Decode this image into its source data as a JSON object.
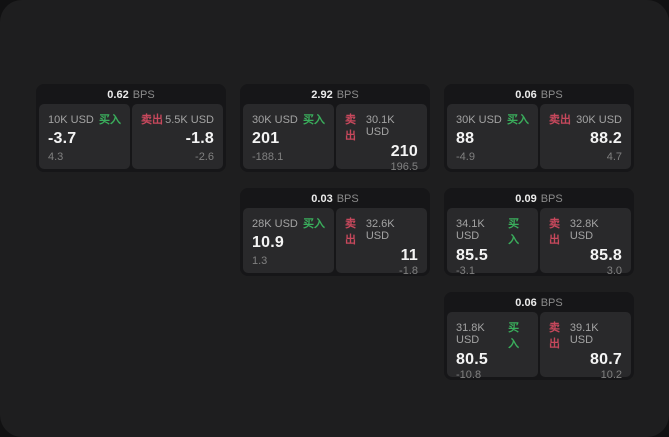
{
  "labels": {
    "bps": "BPS",
    "buy": "买入",
    "sell": "卖出"
  },
  "colors": {
    "window_bg": "#1e1e1f",
    "card_bg": "#161618",
    "panel_bg": "#29292b",
    "buy_green": "#3aae5c",
    "sell_red": "#c7485c"
  },
  "cards": [
    {
      "bps": "0.62",
      "buy": {
        "size": "10K USD",
        "price": "-3.7",
        "delta": "4.3"
      },
      "sell": {
        "size": "5.5K USD",
        "price": "-1.8",
        "delta": "-2.6"
      }
    },
    {
      "bps": "2.92",
      "buy": {
        "size": "30K USD",
        "price": "201",
        "delta": "-188.1"
      },
      "sell": {
        "size": "30.1K USD",
        "price": "210",
        "delta": "196.5"
      }
    },
    {
      "bps": "0.06",
      "buy": {
        "size": "30K USD",
        "price": "88",
        "delta": "-4.9"
      },
      "sell": {
        "size": "30K USD",
        "price": "88.2",
        "delta": "4.7"
      }
    },
    {
      "bps": "0.03",
      "buy": {
        "size": "28K USD",
        "price": "10.9",
        "delta": "1.3"
      },
      "sell": {
        "size": "32.6K USD",
        "price": "11",
        "delta": "-1.8"
      }
    },
    {
      "bps": "0.09",
      "buy": {
        "size": "34.1K USD",
        "price": "85.5",
        "delta": "-3.1"
      },
      "sell": {
        "size": "32.8K USD",
        "price": "85.8",
        "delta": "3.0"
      }
    },
    {
      "bps": "0.06",
      "buy": {
        "size": "31.8K USD",
        "price": "80.5",
        "delta": "-10.8"
      },
      "sell": {
        "size": "39.1K USD",
        "price": "80.7",
        "delta": "10.2"
      }
    }
  ]
}
